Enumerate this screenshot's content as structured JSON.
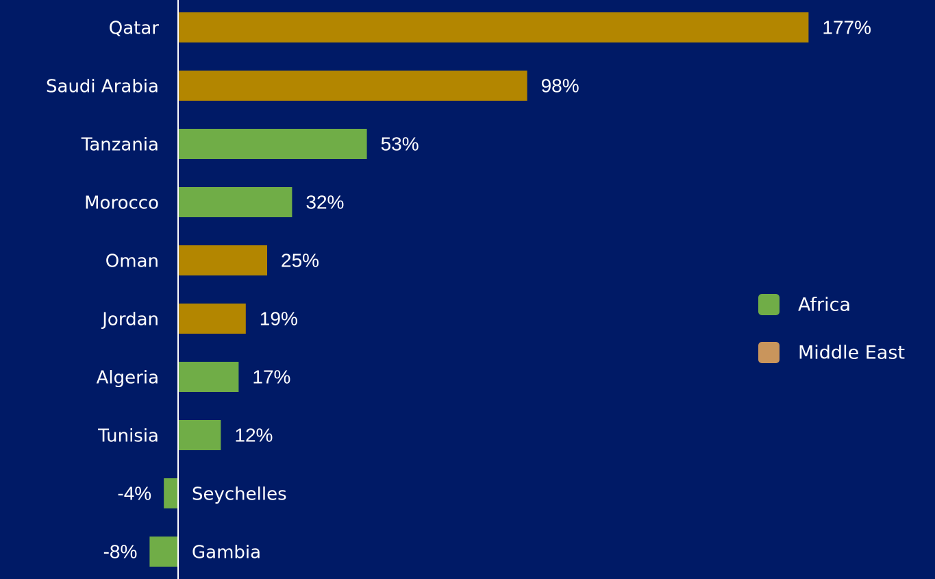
{
  "chart_data": {
    "type": "hbar",
    "categories": [
      "Qatar",
      "Saudi Arabia",
      "Tanzania",
      "Morocco",
      "Oman",
      "Jordan",
      "Algeria",
      "Tunisia",
      "Seychelles",
      "Gambia"
    ],
    "series": [
      {
        "name": "Africa",
        "color": "#70ad47",
        "legend_color": "#70ad47",
        "values": [
          null,
          null,
          53,
          32,
          null,
          null,
          17,
          12,
          -4,
          -8
        ],
        "value_labels": [
          null,
          null,
          "53%",
          "32%",
          null,
          null,
          "17%",
          "12%",
          "-4%",
          "-8%"
        ]
      },
      {
        "name": "Middle East",
        "color": "#b38600",
        "legend_color": "#c9955c",
        "values": [
          177,
          98,
          null,
          null,
          25,
          19,
          null,
          null,
          null,
          null
        ],
        "value_labels": [
          "177%",
          "98%",
          null,
          null,
          "25%",
          "19%",
          null,
          null,
          null,
          null
        ]
      }
    ],
    "xlim": [
      -50,
      210
    ],
    "background": "#001a66"
  }
}
